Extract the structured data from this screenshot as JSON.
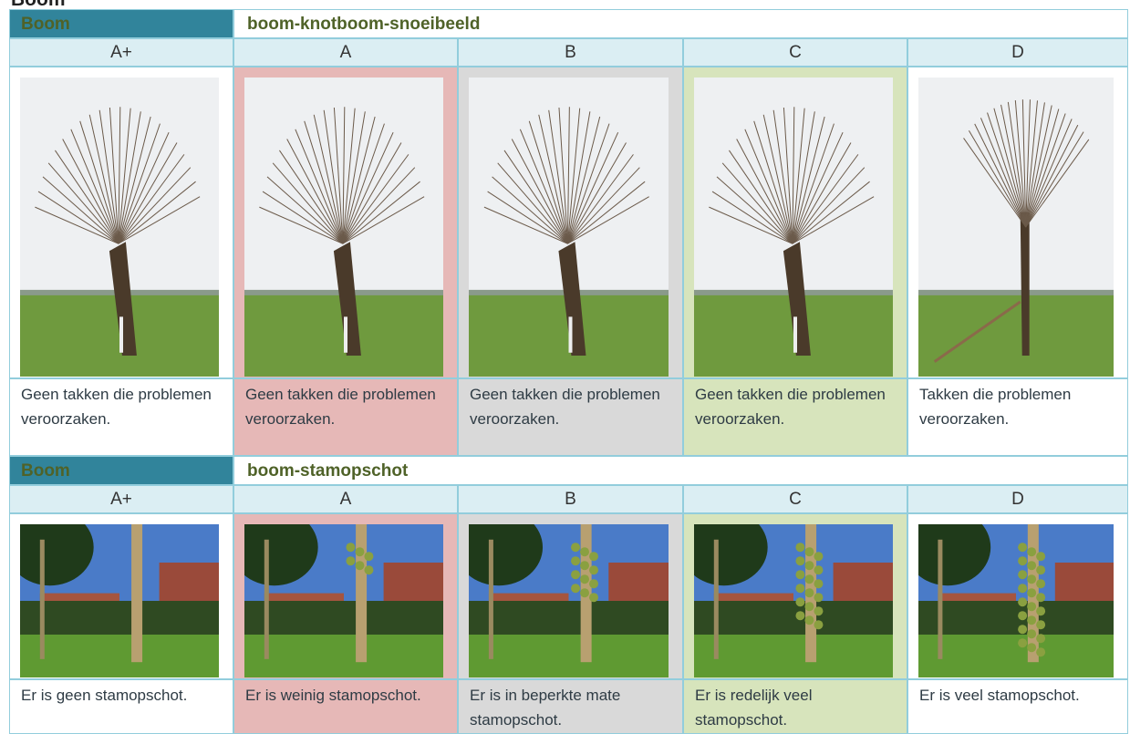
{
  "heading": "Boom",
  "sections": [
    {
      "label": "Boom",
      "title": "boom-knotboom-snoeibeeld",
      "grades": [
        "A+",
        "A",
        "B",
        "C",
        "D"
      ],
      "descriptions": [
        "Geen takken die problemen veroorzaken.",
        "Geen takken die problemen veroorzaken.",
        "Geen takken die problemen veroorzaken.",
        "Geen takken die problemen veroorzaken.",
        "Takken die problemen veroorzaken."
      ]
    },
    {
      "label": "Boom",
      "title": "boom-stamopschot",
      "grades": [
        "A+",
        "A",
        "B",
        "C",
        "D"
      ],
      "descriptions": [
        "Er is geen stamopschot.",
        "Er is weinig stamopschot.",
        "Er is in beperkte mate stamopschot.",
        "Er is redelijk veel stamopschot.",
        "Er is veel stamopschot."
      ]
    }
  ]
}
